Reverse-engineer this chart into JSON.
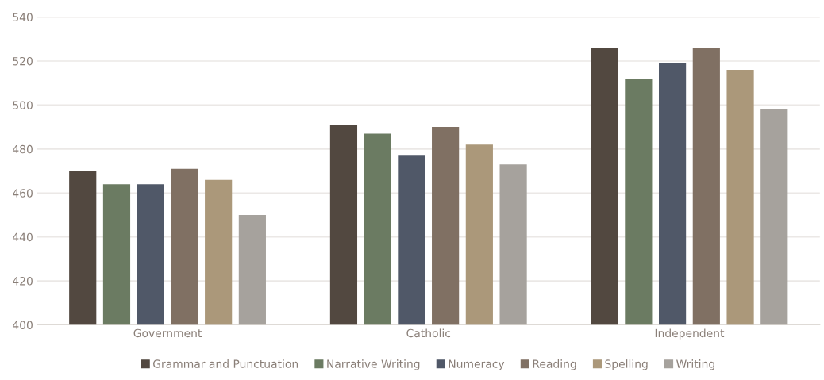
{
  "chart_data": {
    "type": "bar",
    "categories": [
      "Government",
      "Catholic",
      "Independent"
    ],
    "series": [
      {
        "name": "Grammar and Punctuation",
        "color": "#524840",
        "values": [
          470,
          491,
          526
        ]
      },
      {
        "name": "Narrative Writing",
        "color": "#6b7b62",
        "values": [
          464,
          487,
          512
        ]
      },
      {
        "name": "Numeracy",
        "color": "#505868",
        "values": [
          464,
          477,
          519
        ]
      },
      {
        "name": "Reading",
        "color": "#807063",
        "values": [
          471,
          490,
          526
        ]
      },
      {
        "name": "Spelling",
        "color": "#ab987a",
        "values": [
          466,
          482,
          516
        ]
      },
      {
        "name": "Writing",
        "color": "#a6a29d",
        "values": [
          450,
          473,
          498
        ]
      }
    ],
    "ylim": [
      400,
      540
    ],
    "yticks": [
      400,
      420,
      440,
      460,
      480,
      500,
      520,
      540
    ],
    "grid": "y",
    "legend": "bottom"
  }
}
